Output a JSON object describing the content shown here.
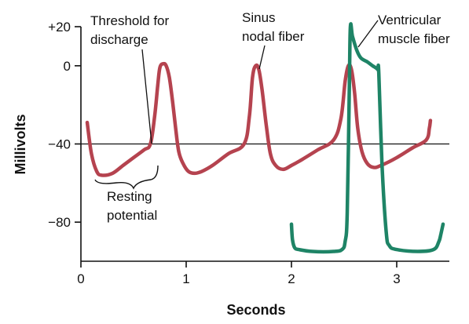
{
  "chart_data": {
    "type": "line",
    "xlabel": "Seconds",
    "ylabel": "Millivolts",
    "xlim": [
      0,
      3.5
    ],
    "ylim": [
      -100,
      20
    ],
    "x_ticks": [
      0,
      1,
      2,
      3
    ],
    "x_tick_labels": [
      "0",
      "1",
      "2",
      "3"
    ],
    "y_ticks": [
      20,
      0,
      -40,
      -80
    ],
    "y_tick_labels": [
      "+20",
      "0",
      "−40",
      "−80"
    ],
    "threshold": -40,
    "series": [
      {
        "color": "#b5434f",
        "x": [
          0.06,
          0.1,
          0.15,
          0.2,
          0.3,
          0.4,
          0.5,
          0.6,
          0.66,
          0.7,
          0.73,
          0.75,
          0.78,
          0.81,
          0.84,
          0.87,
          0.9,
          0.93,
          0.97,
          1.02,
          1.08,
          1.15,
          1.25,
          1.4,
          1.55,
          1.6,
          1.63,
          1.66,
          1.69,
          1.72,
          1.76,
          1.8,
          1.85,
          1.92,
          2.0,
          2.1,
          2.25,
          2.4,
          2.47,
          2.51,
          2.54,
          2.57,
          2.6,
          2.63,
          2.67,
          2.72,
          2.78,
          2.85,
          3.0,
          3.15,
          3.28,
          3.31,
          3.32
        ],
        "y": [
          -29,
          -45,
          -54,
          -56,
          -55,
          -51,
          -47,
          -43,
          -40,
          -26,
          -10,
          -1,
          1,
          0,
          -6,
          -18,
          -32,
          -44,
          -50,
          -54,
          -55,
          -54,
          -51,
          -45,
          -40,
          -26,
          -6,
          0,
          -2,
          -12,
          -30,
          -45,
          -51,
          -53,
          -51,
          -48,
          -43,
          -38,
          -27,
          -8,
          0,
          -2,
          -14,
          -32,
          -44,
          -50,
          -52,
          -51,
          -47,
          -42,
          -38,
          -32,
          -28
        ]
      },
      {
        "color": "#1e8466",
        "x": [
          2.0,
          2.01,
          2.03,
          2.07,
          2.2,
          2.4,
          2.48,
          2.51,
          2.53,
          2.55,
          2.56,
          2.58,
          2.62,
          2.66,
          2.72,
          2.77,
          2.8,
          2.82,
          2.83,
          2.86,
          2.9,
          2.93,
          3.0,
          3.2,
          3.35,
          3.4,
          3.42,
          3.44
        ],
        "y": [
          -81,
          -89,
          -93,
          -94,
          -95,
          -95,
          -94,
          -90,
          -75,
          -10,
          20,
          15,
          8,
          4,
          2,
          0,
          -1,
          -2,
          -4,
          -50,
          -85,
          -92,
          -94,
          -95,
          -94,
          -90,
          -86,
          -81
        ]
      }
    ],
    "annotations": [
      {
        "text_lines": [
          "Threshold for",
          "discharge"
        ]
      },
      {
        "text_lines": [
          "Sinus",
          "nodal fiber"
        ]
      },
      {
        "text_lines": [
          "Ventricular",
          "muscle fiber"
        ]
      },
      {
        "text_lines": [
          "Resting",
          "potential"
        ]
      }
    ]
  }
}
